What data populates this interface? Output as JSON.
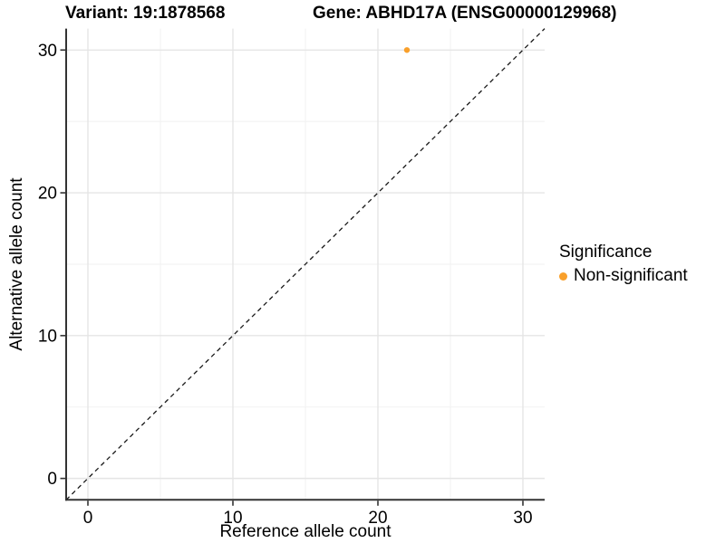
{
  "titles": {
    "variant": "Variant: 19:1878568",
    "gene": "Gene: ABHD17A (ENSG00000129968)"
  },
  "legend": {
    "title": "Significance",
    "items": [
      {
        "label": "Non-significant",
        "color": "#F9A02B"
      }
    ]
  },
  "colors": {
    "point": "#F9A02B",
    "axis_line": "#333333",
    "tick_mark": "#333333",
    "major_grid": "#e5e5e5",
    "minor_grid": "#f2f2f2",
    "reference_line": "#1a1a1a",
    "text": "#000000"
  },
  "chart_data": {
    "type": "scatter",
    "title": "Variant: 19:1878568  /  Gene: ABHD17A (ENSG00000129968)",
    "xlabel": "Reference allele count",
    "ylabel": "Alternative allele count",
    "xlim": [
      -1.5,
      31.5
    ],
    "ylim": [
      -1.5,
      31.5
    ],
    "x_ticks": [
      0,
      10,
      20,
      30
    ],
    "y_ticks": [
      0,
      10,
      20,
      30
    ],
    "x_minor_ticks": [
      5,
      15,
      25
    ],
    "y_minor_ticks": [
      5,
      15,
      25
    ],
    "grid": "major+minor",
    "legend_position": "right",
    "series": [
      {
        "name": "Non-significant",
        "color": "#F9A02B",
        "points": [
          {
            "x": 22,
            "y": 30
          }
        ]
      }
    ],
    "reference_line": {
      "type": "identity y=x",
      "style": "dashed"
    }
  }
}
